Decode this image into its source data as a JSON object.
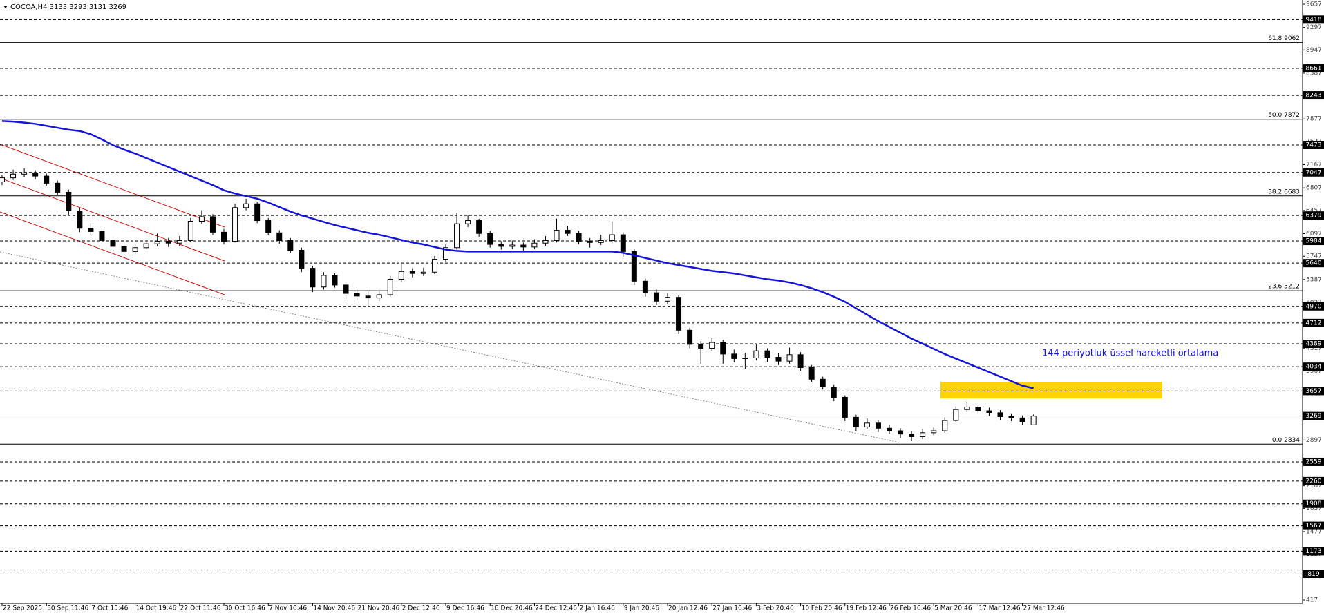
{
  "chart_data": {
    "type": "candlestick",
    "title": "COCOA,H4 3133 3293 3131 3269",
    "categories": [
      "22 Sep 2025",
      null,
      null,
      null,
      "30 Sep 11:46",
      null,
      null,
      null,
      "7 Oct 15:46",
      null,
      null,
      null,
      "14 Oct 19:46",
      null,
      null,
      null,
      "22 Oct 11:46",
      null,
      null,
      null,
      "30 Oct 16:46",
      null,
      null,
      null,
      "7 Nov 16:46",
      null,
      null,
      null,
      "14 Nov 20:46",
      null,
      null,
      null,
      "21 Nov 20:46",
      null,
      null,
      null,
      "2 Dec 12:46",
      null,
      null,
      null,
      "9 Dec 16:46",
      null,
      null,
      null,
      "16 Dec 20:46",
      null,
      null,
      null,
      "24 Dec 12:46",
      null,
      null,
      null,
      "2 Jan 16:46",
      null,
      null,
      null,
      "9 Jan 20:46",
      null,
      null,
      null,
      "20 Jan 12:46",
      null,
      null,
      null,
      "27 Jan 16:46",
      null,
      null,
      null,
      "3 Feb 20:46",
      null,
      null,
      null,
      "10 Feb 20:46",
      null,
      null,
      null,
      "19 Feb 12:46",
      null,
      null,
      null,
      "26 Feb 16:46",
      null,
      null,
      null,
      "5 Mar 20:46",
      null,
      null,
      null,
      "17 Mar 12:46",
      null,
      null,
      null,
      "27 Mar 12:46",
      null
    ],
    "ohlc": [
      [
        6900,
        7010,
        6850,
        6963
      ],
      [
        6963,
        7090,
        6930,
        7020
      ],
      [
        7020,
        7110,
        6980,
        7040
      ],
      [
        7040,
        7080,
        6940,
        6990
      ],
      [
        6990,
        7030,
        6840,
        6880
      ],
      [
        6880,
        6920,
        6700,
        6740
      ],
      [
        6740,
        6780,
        6380,
        6450
      ],
      [
        6450,
        6500,
        6120,
        6180
      ],
      [
        6180,
        6260,
        6080,
        6130
      ],
      [
        6130,
        6170,
        5950,
        5990
      ],
      [
        5990,
        6040,
        5860,
        5900
      ],
      [
        5900,
        5950,
        5740,
        5820
      ],
      [
        5820,
        5930,
        5780,
        5880
      ],
      [
        5880,
        6010,
        5850,
        5940
      ],
      [
        5940,
        6100,
        5900,
        5980
      ],
      [
        5980,
        6030,
        5890,
        5950
      ],
      [
        5950,
        6060,
        5910,
        5990
      ],
      [
        5990,
        6340,
        5970,
        6290
      ],
      [
        6290,
        6460,
        6250,
        6360
      ],
      [
        6360,
        6400,
        6080,
        6120
      ],
      [
        6120,
        6170,
        5930,
        5980
      ],
      [
        5980,
        6560,
        5960,
        6500
      ],
      [
        6500,
        6640,
        6460,
        6560
      ],
      [
        6560,
        6590,
        6260,
        6300
      ],
      [
        6300,
        6340,
        6070,
        6110
      ],
      [
        6110,
        6150,
        5940,
        5990
      ],
      [
        5990,
        6030,
        5800,
        5840
      ],
      [
        5840,
        5880,
        5500,
        5560
      ],
      [
        5560,
        5600,
        5190,
        5270
      ],
      [
        5270,
        5500,
        5230,
        5450
      ],
      [
        5450,
        5480,
        5260,
        5300
      ],
      [
        5300,
        5340,
        5090,
        5170
      ],
      [
        5170,
        5230,
        5060,
        5130
      ],
      [
        5130,
        5200,
        4960,
        5100
      ],
      [
        5100,
        5210,
        5050,
        5150
      ],
      [
        5150,
        5440,
        5120,
        5390
      ],
      [
        5390,
        5620,
        5350,
        5510
      ],
      [
        5510,
        5560,
        5420,
        5480
      ],
      [
        5480,
        5570,
        5440,
        5500
      ],
      [
        5500,
        5750,
        5470,
        5700
      ],
      [
        5700,
        5930,
        5660,
        5880
      ],
      [
        5880,
        6420,
        5850,
        6250
      ],
      [
        6250,
        6380,
        6200,
        6300
      ],
      [
        6300,
        6330,
        6050,
        6100
      ],
      [
        6100,
        6140,
        5880,
        5930
      ],
      [
        5930,
        5980,
        5850,
        5900
      ],
      [
        5900,
        5990,
        5860,
        5920
      ],
      [
        5920,
        5960,
        5830,
        5890
      ],
      [
        5890,
        6010,
        5860,
        5950
      ],
      [
        5950,
        6060,
        5910,
        5990
      ],
      [
        5990,
        6330,
        5960,
        6150
      ],
      [
        6150,
        6220,
        6060,
        6100
      ],
      [
        6100,
        6140,
        5930,
        5980
      ],
      [
        5980,
        6030,
        5880,
        5960
      ],
      [
        5960,
        6080,
        5920,
        5990
      ],
      [
        5990,
        6290,
        5950,
        6080
      ],
      [
        6080,
        6120,
        5740,
        5820
      ],
      [
        5820,
        5860,
        5300,
        5360
      ],
      [
        5360,
        5400,
        5120,
        5180
      ],
      [
        5180,
        5230,
        4990,
        5050
      ],
      [
        5050,
        5170,
        5010,
        5110
      ],
      [
        5110,
        5140,
        4540,
        4600
      ],
      [
        4600,
        4640,
        4320,
        4380
      ],
      [
        4380,
        4430,
        4080,
        4320
      ],
      [
        4320,
        4480,
        4280,
        4410
      ],
      [
        4410,
        4450,
        4080,
        4230
      ],
      [
        4230,
        4300,
        4100,
        4160
      ],
      [
        4160,
        4250,
        4000,
        4170
      ],
      [
        4170,
        4380,
        4130,
        4280
      ],
      [
        4280,
        4320,
        4110,
        4180
      ],
      [
        4180,
        4240,
        4060,
        4120
      ],
      [
        4120,
        4330,
        4080,
        4220
      ],
      [
        4220,
        4260,
        3970,
        4020
      ],
      [
        4020,
        4060,
        3800,
        3840
      ],
      [
        3840,
        3880,
        3680,
        3720
      ],
      [
        3720,
        3760,
        3500,
        3560
      ],
      [
        3560,
        3590,
        3190,
        3250
      ],
      [
        3250,
        3290,
        3040,
        3100
      ],
      [
        3100,
        3230,
        3070,
        3160
      ],
      [
        3160,
        3200,
        3020,
        3080
      ],
      [
        3080,
        3130,
        2990,
        3040
      ],
      [
        3040,
        3080,
        2930,
        2990
      ],
      [
        2990,
        3040,
        2880,
        2950
      ],
      [
        2950,
        3070,
        2910,
        3010
      ],
      [
        3010,
        3090,
        2970,
        3040
      ],
      [
        3040,
        3250,
        3010,
        3200
      ],
      [
        3200,
        3420,
        3170,
        3370
      ],
      [
        3370,
        3480,
        3330,
        3410
      ],
      [
        3410,
        3450,
        3300,
        3350
      ],
      [
        3350,
        3400,
        3270,
        3320
      ],
      [
        3320,
        3360,
        3210,
        3260
      ],
      [
        3260,
        3300,
        3190,
        3240
      ],
      [
        3240,
        3280,
        3130,
        3180
      ],
      [
        3133,
        3293,
        3131,
        3269
      ]
    ],
    "ema": {
      "color": "#1515d8",
      "values": [
        7843,
        7835,
        7820,
        7800,
        7770,
        7740,
        7710,
        7690,
        7640,
        7560,
        7470,
        7400,
        7340,
        7270,
        7200,
        7130,
        7060,
        6990,
        6920,
        6850,
        6770,
        6720,
        6680,
        6640,
        6580,
        6510,
        6440,
        6380,
        6330,
        6280,
        6230,
        6190,
        6150,
        6110,
        6080,
        6040,
        6000,
        5960,
        5930,
        5890,
        5850,
        5830,
        5820,
        5820,
        5820,
        5820,
        5820,
        5820,
        5820,
        5820,
        5820,
        5820,
        5820,
        5820,
        5820,
        5820,
        5800,
        5760,
        5720,
        5680,
        5640,
        5610,
        5580,
        5550,
        5520,
        5500,
        5480,
        5450,
        5420,
        5390,
        5370,
        5340,
        5300,
        5250,
        5190,
        5120,
        5040,
        4940,
        4840,
        4740,
        4650,
        4560,
        4470,
        4390,
        4310,
        4230,
        4160,
        4090,
        4020,
        3950,
        3880,
        3810,
        3740,
        3700
      ]
    },
    "annotation": "144 periyotluk üssel hareketli ortalama",
    "levels": [
      9418,
      8661,
      8243,
      7473,
      7047,
      6379,
      5984,
      5640,
      4970,
      4712,
      4389,
      4034,
      3657,
      2559,
      2260,
      1908,
      1567,
      1173,
      819
    ],
    "bid": 3269,
    "fib_levels": [
      {
        "value": 9062,
        "label": "61.8 9062"
      },
      {
        "value": 7872,
        "label": "50.0 7872"
      },
      {
        "value": 6683,
        "label": "38.2 6683"
      },
      {
        "value": 5212,
        "label": "23.6 5212"
      },
      {
        "value": 2834,
        "label": "0.0 2834"
      }
    ],
    "ylim": [
      417,
      9657
    ],
    "yticks": [
      9657,
      9297,
      8947,
      8587,
      8237,
      7877,
      7527,
      7167,
      6807,
      6457,
      6097,
      5747,
      5387,
      5027,
      4677,
      4317,
      3967,
      3617,
      3257,
      2897,
      2547,
      2187,
      1837,
      1477,
      1127,
      777,
      417
    ]
  }
}
